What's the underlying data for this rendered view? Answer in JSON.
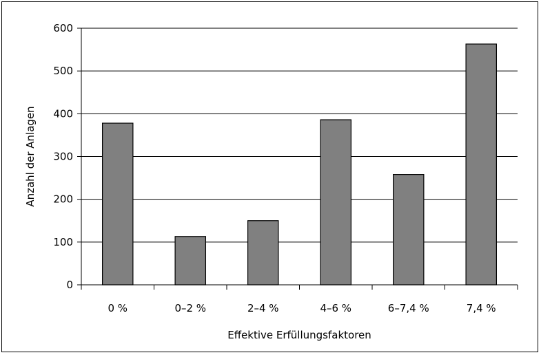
{
  "chart_data": {
    "type": "bar",
    "title": "",
    "xlabel": "Effektive Erfüllungsfaktoren",
    "ylabel": "Anzahl der Anlagen",
    "categories": [
      "0 %",
      "0–2 %",
      "2–4 %",
      "4–6 %",
      "6–7,4 %",
      "7,4 %"
    ],
    "values": [
      378,
      113,
      150,
      386,
      258,
      563
    ],
    "ylim": [
      0,
      600
    ],
    "yticks": [
      0,
      100,
      200,
      300,
      400,
      500,
      600
    ],
    "grid": "horizontal",
    "legend": "none",
    "colors": {
      "bar": "#808080",
      "bar_stroke": "#000000",
      "grid": "#000000",
      "background": "#ffffff"
    }
  }
}
